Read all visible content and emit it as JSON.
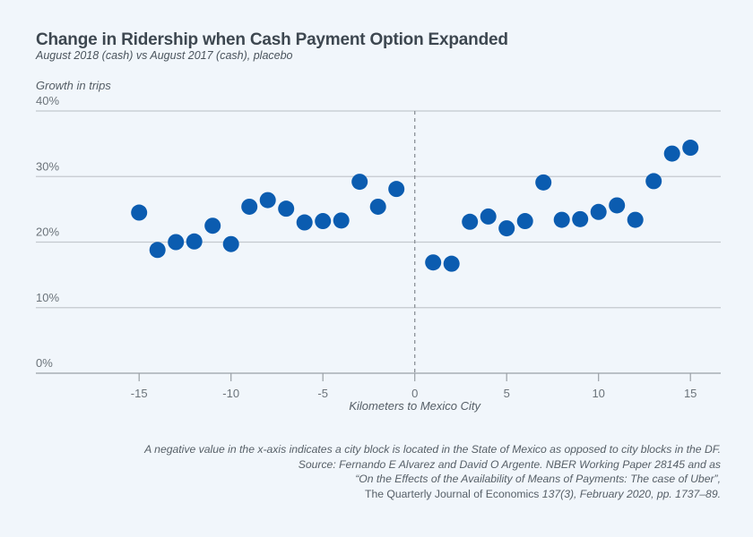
{
  "chart_data": {
    "type": "scatter",
    "title": "Change in Ridership when Cash Payment Option Expanded",
    "subtitle": "August 2018 (cash) vs August 2017 (cash), placebo",
    "ylabel": "Growth in trips",
    "xlabel": "Kilometers to Mexico City",
    "xlim": [
      -19,
      17
    ],
    "ylim": [
      0,
      40
    ],
    "grid": true,
    "reference_line_x": 0,
    "yticks": [
      0,
      10,
      20,
      30,
      40
    ],
    "ytick_labels": [
      "0%",
      "10%",
      "20%",
      "30%",
      "40%"
    ],
    "xticks": [
      -15,
      -10,
      -5,
      0,
      5,
      10,
      15
    ],
    "xtick_labels": [
      "-15",
      "-10",
      "-5",
      "0",
      "5",
      "10",
      "15"
    ],
    "point_color": "#0b5cb0",
    "points": [
      {
        "x": -15,
        "y": 24.5
      },
      {
        "x": -14,
        "y": 18.8
      },
      {
        "x": -13,
        "y": 20.0
      },
      {
        "x": -12,
        "y": 20.1
      },
      {
        "x": -11,
        "y": 22.5
      },
      {
        "x": -10,
        "y": 19.7
      },
      {
        "x": -9,
        "y": 25.4
      },
      {
        "x": -8,
        "y": 26.4
      },
      {
        "x": -7,
        "y": 25.1
      },
      {
        "x": -6,
        "y": 23.0
      },
      {
        "x": -5,
        "y": 23.2
      },
      {
        "x": -4,
        "y": 23.3
      },
      {
        "x": -3,
        "y": 29.2
      },
      {
        "x": -2,
        "y": 25.4
      },
      {
        "x": -1,
        "y": 28.1
      },
      {
        "x": 1,
        "y": 16.9
      },
      {
        "x": 2,
        "y": 16.7
      },
      {
        "x": 3,
        "y": 23.1
      },
      {
        "x": 4,
        "y": 23.9
      },
      {
        "x": 5,
        "y": 22.1
      },
      {
        "x": 6,
        "y": 23.2
      },
      {
        "x": 7,
        "y": 29.1
      },
      {
        "x": 8,
        "y": 23.4
      },
      {
        "x": 9,
        "y": 23.5
      },
      {
        "x": 10,
        "y": 24.6
      },
      {
        "x": 11,
        "y": 25.6
      },
      {
        "x": 12,
        "y": 23.4
      },
      {
        "x": 13,
        "y": 29.3
      },
      {
        "x": 14,
        "y": 33.5
      },
      {
        "x": 15,
        "y": 34.4
      }
    ]
  },
  "notes": {
    "line1": "A negative value in the x-axis indicates a city block is located in the State of Mexico as opposed to city blocks in the DF.",
    "line2": "Source: Fernando E Alvarez and David O Argente. NBER Working Paper 28145 and as",
    "line3": "“On the Effects of the Availability of Means of Payments: The case of Uber”,",
    "line4_journal": "The Quarterly Journal of Economics ",
    "line4_rest": "137(3), February 2020, pp. 1737–89."
  }
}
